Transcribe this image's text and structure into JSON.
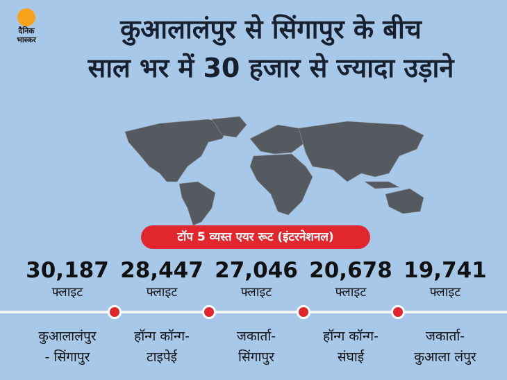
{
  "logo": {
    "line1": "दैनिक",
    "line2": "भास्कर"
  },
  "title": {
    "line1": "कुआलालंपुर से सिंगापुर के बीच",
    "line2": "साल भर में 30 हजार से ज्यादा उड़ाने"
  },
  "badge": "टॉप 5 व्यस्त एयर रूट (इंटरनेशनल)",
  "routes": [
    {
      "count": "30,187",
      "unit": "फ्लाइट",
      "route_line1": "कुआलालंपुर",
      "route_line2": "- सिंगापुर"
    },
    {
      "count": "28,447",
      "unit": "फ्लाइट",
      "route_line1": "हॉन्ग कॉन्ग-",
      "route_line2": "टाइपेई"
    },
    {
      "count": "27,046",
      "unit": "फ्लाइट",
      "route_line1": "जकार्ता-",
      "route_line2": "सिंगापुर"
    },
    {
      "count": "20,678",
      "unit": "फ्लाइट",
      "route_line1": "हॉन्ग कॉन्ग-",
      "route_line2": "संघाई"
    },
    {
      "count": "19,741",
      "unit": "फ्लाइट",
      "route_line1": "जकार्ता-",
      "route_line2": "कुआला लंपुर"
    }
  ]
}
